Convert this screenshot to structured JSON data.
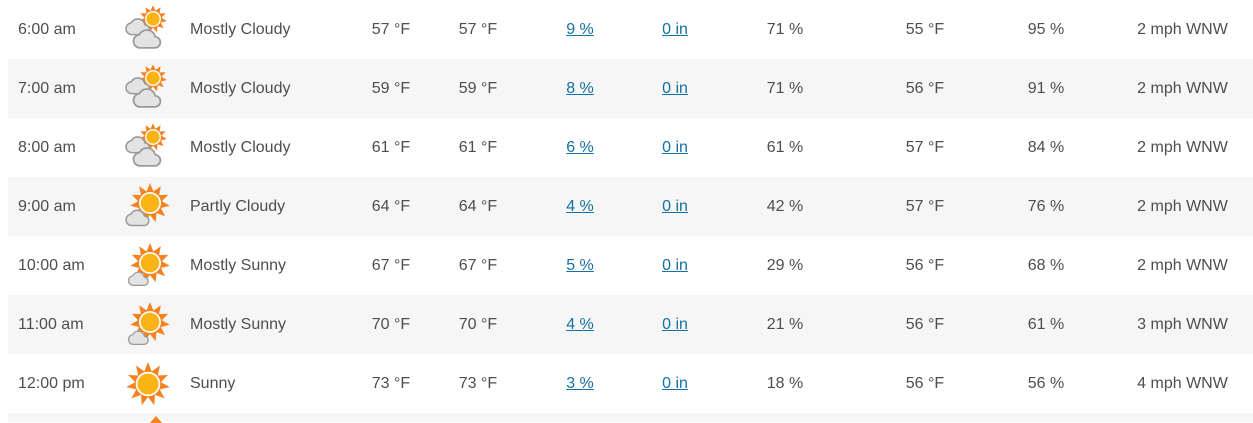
{
  "table": {
    "rows": [
      {
        "time": "6:00 am",
        "icon": "mostly-cloudy-icon",
        "condition": "Mostly Cloudy",
        "temp": "57 °F",
        "feels_like": "57 °F",
        "precip_chance": "9 %",
        "precip_amount": "0 in",
        "humidity": "71 %",
        "dew_point": "55 °F",
        "cloud_cover": "95 %",
        "wind": "2 mph WNW"
      },
      {
        "time": "7:00 am",
        "icon": "mostly-cloudy-icon",
        "condition": "Mostly Cloudy",
        "temp": "59 °F",
        "feels_like": "59 °F",
        "precip_chance": "8 %",
        "precip_amount": "0 in",
        "humidity": "71 %",
        "dew_point": "56 °F",
        "cloud_cover": "91 %",
        "wind": "2 mph WNW"
      },
      {
        "time": "8:00 am",
        "icon": "mostly-cloudy-icon",
        "condition": "Mostly Cloudy",
        "temp": "61 °F",
        "feels_like": "61 °F",
        "precip_chance": "6 %",
        "precip_amount": "0 in",
        "humidity": "61 %",
        "dew_point": "57 °F",
        "cloud_cover": "84 %",
        "wind": "2 mph WNW"
      },
      {
        "time": "9:00 am",
        "icon": "partly-cloudy-icon",
        "condition": "Partly Cloudy",
        "temp": "64 °F",
        "feels_like": "64 °F",
        "precip_chance": "4 %",
        "precip_amount": "0 in",
        "humidity": "42 %",
        "dew_point": "57 °F",
        "cloud_cover": "76 %",
        "wind": "2 mph WNW"
      },
      {
        "time": "10:00 am",
        "icon": "mostly-sunny-icon",
        "condition": "Mostly Sunny",
        "temp": "67 °F",
        "feels_like": "67 °F",
        "precip_chance": "5 %",
        "precip_amount": "0 in",
        "humidity": "29 %",
        "dew_point": "56 °F",
        "cloud_cover": "68 %",
        "wind": "2 mph WNW"
      },
      {
        "time": "11:00 am",
        "icon": "mostly-sunny-icon",
        "condition": "Mostly Sunny",
        "temp": "70 °F",
        "feels_like": "70 °F",
        "precip_chance": "4 %",
        "precip_amount": "0 in",
        "humidity": "21 %",
        "dew_point": "56 °F",
        "cloud_cover": "61 %",
        "wind": "3 mph WNW"
      },
      {
        "time": "12:00 pm",
        "icon": "sunny-icon",
        "condition": "Sunny",
        "temp": "73 °F",
        "feels_like": "73 °F",
        "precip_chance": "3 %",
        "precip_amount": "0 in",
        "humidity": "18 %",
        "dew_point": "56 °F",
        "cloud_cover": "56 %",
        "wind": "4 mph WNW"
      }
    ]
  },
  "colors": {
    "text": "#4e4e4e",
    "link": "#1470a0",
    "row_alt_bg": "#f6f6f6",
    "sun_ray": "#f58220",
    "sun_core": "#fbb316",
    "sun_ring": "#ffffff",
    "cloud_fill": "#e3e3e3",
    "cloud_stroke": "#9b9b9b"
  }
}
